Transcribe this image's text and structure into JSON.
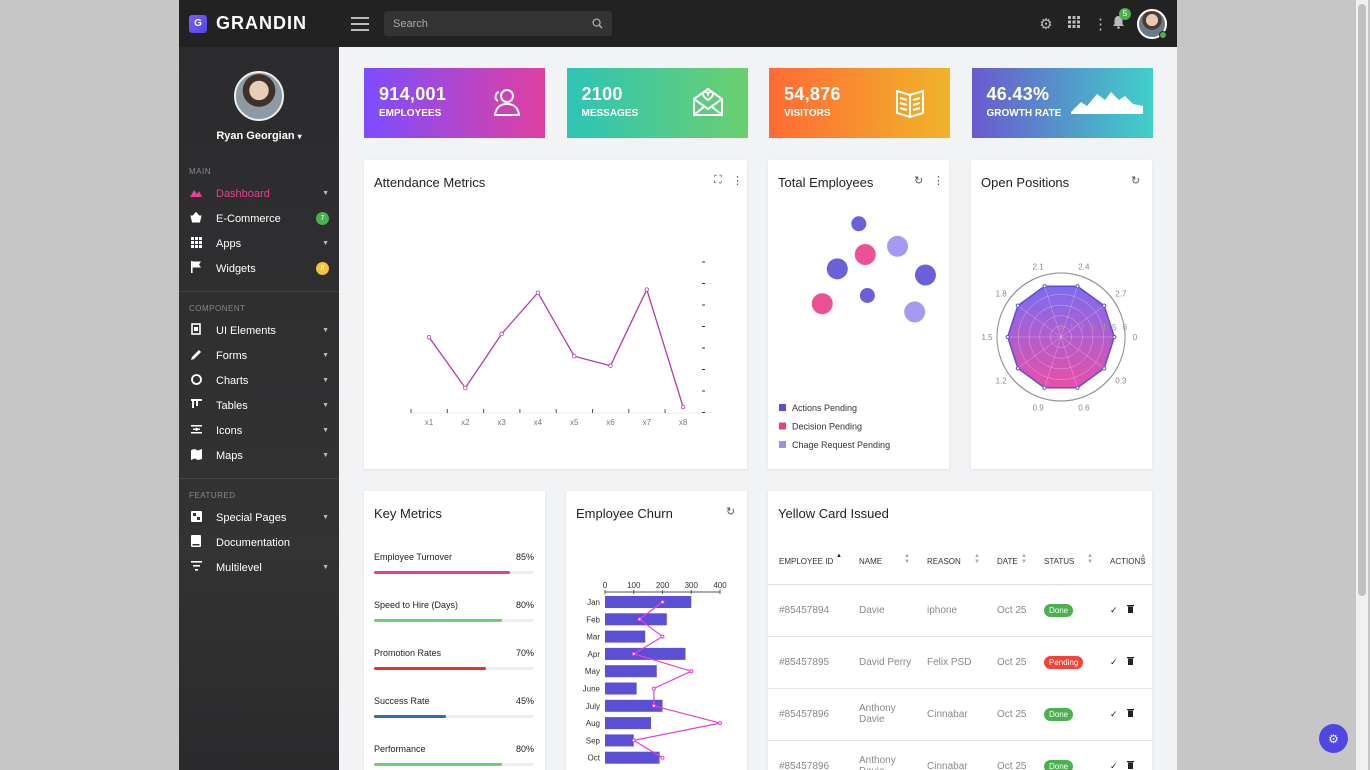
{
  "app": {
    "logo_text": "GRANDIN",
    "logo_mark": "G"
  },
  "topbar": {
    "search_placeholder": "Search",
    "notification_count": "5",
    "icons": [
      "menu-icon",
      "search-icon",
      "gear-icon",
      "grid-icon",
      "more-vertical-icon",
      "bell-icon"
    ]
  },
  "sidebar": {
    "user_name": "Ryan Georgian",
    "sections": [
      "MAIN",
      "COMPONENT",
      "FEATURED"
    ],
    "main_items": [
      {
        "label": "Dashboard",
        "icon": "dashboard-icon",
        "caret": true
      },
      {
        "label": "E-Commerce",
        "icon": "basket-icon",
        "badge": "7",
        "badge_color": "#4caf50"
      },
      {
        "label": "Apps",
        "icon": "apps-grid-icon",
        "caret": true
      },
      {
        "label": "Widgets",
        "icon": "flag-icon",
        "badge": "8",
        "badge_color": "#f5c242"
      }
    ],
    "component_items": [
      {
        "label": "UI Elements",
        "icon": "ui-elements-icon",
        "caret": true
      },
      {
        "label": "Forms",
        "icon": "pencil-icon",
        "caret": true
      },
      {
        "label": "Charts",
        "icon": "pie-chart-icon",
        "caret": true
      },
      {
        "label": "Tables",
        "icon": "table-icon",
        "caret": true
      },
      {
        "label": "Icons",
        "icon": "icons-icon",
        "caret": true
      },
      {
        "label": "Maps",
        "icon": "map-icon",
        "caret": true
      }
    ],
    "featured_items": [
      {
        "label": "Special Pages",
        "icon": "pages-icon",
        "caret": true
      },
      {
        "label": "Documentation",
        "icon": "book-icon",
        "caret": false
      },
      {
        "label": "Multilevel",
        "icon": "filter-icon",
        "caret": true
      }
    ]
  },
  "stats": [
    {
      "value": "914,001",
      "label": "EMPLOYEES",
      "icon": "users-icon",
      "gradient": [
        "#7c4dff",
        "#e040a0"
      ]
    },
    {
      "value": "2100",
      "label": "MESSAGES",
      "icon": "envelope-open-icon",
      "gradient": [
        "#2ec4b6",
        "#6ccf6f"
      ]
    },
    {
      "value": "54,876",
      "label": "VISITORS",
      "icon": "book-open-icon",
      "gradient": [
        "#ff6b35",
        "#f0b429"
      ]
    },
    {
      "value": "46.43%",
      "label": "GROWTH RATE",
      "icon": "mountain-chart-icon",
      "gradient": [
        "#6a5acd",
        "#40d0c8"
      ]
    }
  ],
  "cards": {
    "attendance": "Attendance Metrics",
    "total_employees": "Total Employees",
    "open_positions": "Open Positions",
    "key_metrics": "Key Metrics",
    "employee_churn": "Employee Churn",
    "yellow_card": "Yellow Card Issued"
  },
  "key_metrics": [
    {
      "label": "Employee Turnover",
      "value": "85%",
      "fraction": 0.85,
      "color": "#e83e8c"
    },
    {
      "label": "Speed to Hire (Days)",
      "value": "80%",
      "fraction": 0.8,
      "color": "#6ccf6f"
    },
    {
      "label": "Promotion Rates",
      "value": "70%",
      "fraction": 0.7,
      "color": "#e8321e"
    },
    {
      "label": "Success Rate",
      "value": "45%",
      "fraction": 0.45,
      "color": "#2f6db5"
    },
    {
      "label": "Performance",
      "value": "80%",
      "fraction": 0.8,
      "color": "#6ccf6f"
    }
  ],
  "yellow_card": {
    "headers": [
      "EMPLOYEE ID",
      "NAME",
      "REASON",
      "DATE",
      "STATUS",
      "ACTIONS"
    ],
    "rows": [
      {
        "id": "#85457894",
        "name": "Davie",
        "reason": "iphone",
        "date": "Oct 25",
        "status": "Done",
        "status_color": "#4caf50"
      },
      {
        "id": "#85457895",
        "name": "David Perry",
        "reason": "Felix PSD",
        "date": "Oct 25",
        "status": "Pending",
        "status_color": "#f44336"
      },
      {
        "id": "#85457896",
        "name": "Anthony Davie",
        "reason": "Cinnabar",
        "date": "Oct 25",
        "status": "Done",
        "status_color": "#4caf50"
      },
      {
        "id": "#85457896",
        "name": "Anthony Davie",
        "reason": "Cinnabar",
        "date": "Oct 25",
        "status": "Done",
        "status_color": "#4caf50"
      }
    ]
  },
  "chart_data": [
    {
      "type": "line",
      "title": "Attendance Metrics",
      "x": [
        "x1",
        "x2",
        "x3",
        "x4",
        "x5",
        "x6",
        "x7",
        "x8"
      ],
      "values": [
        37,
        21,
        38,
        51,
        31,
        28,
        52,
        15
      ],
      "ylim": [
        15,
        55
      ],
      "color": "#b03bb0"
    },
    {
      "type": "scatter",
      "title": "Total Employees",
      "legend": [
        "Actions Pending",
        "Decision Pending",
        "Chage Request Pending"
      ],
      "colors": [
        "#5b4fd6",
        "#e83e8c",
        "#9b8ff0"
      ],
      "points": [
        {
          "series": 0,
          "x": 3.2,
          "y": 6.5,
          "r": 6
        },
        {
          "series": 0,
          "x": 2.2,
          "y": 4.3,
          "r": 9
        },
        {
          "series": 0,
          "x": 6.3,
          "y": 4.0,
          "r": 9
        },
        {
          "series": 1,
          "x": 3.5,
          "y": 5.0,
          "r": 9
        },
        {
          "series": 1,
          "x": 1.5,
          "y": 2.6,
          "r": 9
        },
        {
          "series": 0,
          "x": 3.6,
          "y": 3.0,
          "r": 6
        },
        {
          "series": 2,
          "x": 5.0,
          "y": 5.4,
          "r": 9
        },
        {
          "series": 2,
          "x": 5.8,
          "y": 2.2,
          "r": 9
        }
      ]
    },
    {
      "type": "radar",
      "title": "Open Positions",
      "axis_labels": [
        "0",
        "0.3",
        "0.6",
        "0.9",
        "1.2",
        "1.5",
        "1.8",
        "2.1",
        "2.4",
        "2.7"
      ],
      "radial_ticks": [
        "0",
        "1",
        "2",
        "3",
        "4",
        "5",
        "6"
      ],
      "values": [
        5,
        5,
        5,
        5,
        5,
        5,
        5,
        5,
        5,
        5
      ],
      "rmax": 6,
      "gradient": [
        "#7c6cf0",
        "#e84fa8"
      ]
    },
    {
      "type": "bar",
      "orientation": "horizontal",
      "title": "Employee Churn",
      "categories": [
        "Jan",
        "Feb",
        "Mar",
        "Apr",
        "May",
        "June",
        "July",
        "Aug",
        "Sep",
        "Oct"
      ],
      "series": [
        {
          "type": "bar",
          "values": [
            300,
            215,
            140,
            280,
            180,
            110,
            200,
            160,
            100,
            190
          ],
          "color": "#5b4fd6"
        },
        {
          "type": "line",
          "values": [
            200,
            120,
            200,
            100,
            300,
            170,
            170,
            400,
            100,
            200
          ],
          "color": "#e83ed8"
        }
      ],
      "xticks": [
        0,
        100,
        200,
        300,
        400
      ],
      "xlim": [
        0,
        400
      ]
    }
  ]
}
